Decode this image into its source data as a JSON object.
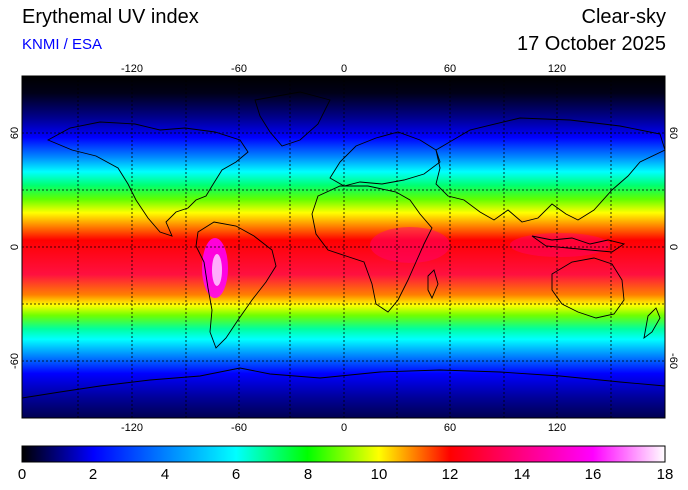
{
  "header": {
    "title": "Erythemal UV index",
    "subtitle": "KNMI / ESA",
    "condition": "Clear-sky",
    "date": "17 October 2025"
  },
  "map": {
    "lon_ticks": [
      "-120",
      "-60",
      "0",
      "60",
      "120"
    ],
    "lat_ticks": [
      "60",
      "0",
      "-60"
    ],
    "colorbar_ticks": [
      "0",
      "2",
      "4",
      "6",
      "8",
      "10",
      "12",
      "14",
      "16",
      "18"
    ],
    "colorbar_range": [
      0,
      18
    ],
    "colors": {
      "0": "#000000",
      "2": "#0000ff",
      "4": "#0080ff",
      "6": "#00ffff",
      "8": "#00ff00",
      "10": "#ffff00",
      "12": "#ff0000",
      "14": "#ff0080",
      "16": "#ff00ff",
      "18": "#ffffff"
    }
  }
}
